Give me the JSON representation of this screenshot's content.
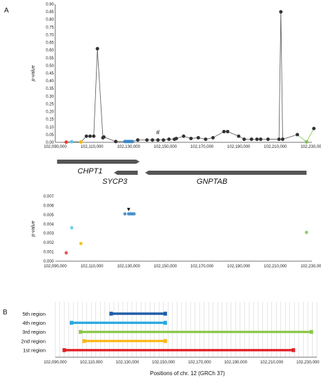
{
  "panels": {
    "a": "A",
    "b": "B"
  },
  "chart_data": [
    {
      "type": "line",
      "ylabel": "p-value",
      "ylim": [
        0,
        0.9
      ],
      "yticks": [
        "0.00",
        "0.05",
        "0.10",
        "0.15",
        "0.20",
        "0.25",
        "0.30",
        "0.35",
        "0.40",
        "0.45",
        "0.50",
        "0.55",
        "0.60",
        "0.65",
        "0.70",
        "0.75",
        "0.80",
        "0.85",
        "0.90"
      ],
      "xlim": [
        102090000,
        102230000
      ],
      "xticks": [
        "102,090,000",
        "102,110,000",
        "102,130,000",
        "102,150,000",
        "102,170,000",
        "102,190,000",
        "102,210,000",
        "102,230,000"
      ],
      "line_color": "#555555",
      "annotation": "#",
      "annotation_x": 102146000,
      "points": [
        {
          "x": 102096000,
          "y": 0.001,
          "c": "#e8392c"
        },
        {
          "x": 102099000,
          "y": 0.004,
          "c": "#56c4e8"
        },
        {
          "x": 102104000,
          "y": 0.002,
          "c": "#f5b800"
        },
        {
          "x": 102107000,
          "y": 0.04,
          "c": "#333333"
        },
        {
          "x": 102109000,
          "y": 0.04,
          "c": "#333333"
        },
        {
          "x": 102111000,
          "y": 0.04,
          "c": "#333333"
        },
        {
          "x": 102113000,
          "y": 0.61,
          "c": "#333333"
        },
        {
          "x": 102116000,
          "y": 0.03,
          "c": "#333333"
        },
        {
          "x": 102116500,
          "y": 0.035,
          "c": "#333333"
        },
        {
          "x": 102123000,
          "y": 0.005,
          "c": "#333333"
        },
        {
          "x": 102128000,
          "y": 0.005,
          "c": "#3a86c8"
        },
        {
          "x": 102129000,
          "y": 0.005,
          "c": "#3a86c8"
        },
        {
          "x": 102130000,
          "y": 0.005,
          "c": "#3a86c8"
        },
        {
          "x": 102131000,
          "y": 0.005,
          "c": "#3a86c8"
        },
        {
          "x": 102132000,
          "y": 0.005,
          "c": "#3a86c8"
        },
        {
          "x": 102135000,
          "y": 0.015,
          "c": "#333333"
        },
        {
          "x": 102140000,
          "y": 0.015,
          "c": "#333333"
        },
        {
          "x": 102143000,
          "y": 0.015,
          "c": "#333333"
        },
        {
          "x": 102146000,
          "y": 0.015,
          "c": "#333333"
        },
        {
          "x": 102149000,
          "y": 0.015,
          "c": "#333333"
        },
        {
          "x": 102152000,
          "y": 0.02,
          "c": "#333333"
        },
        {
          "x": 102155000,
          "y": 0.02,
          "c": "#333333"
        },
        {
          "x": 102156000,
          "y": 0.025,
          "c": "#333333"
        },
        {
          "x": 102160000,
          "y": 0.04,
          "c": "#333333"
        },
        {
          "x": 102164000,
          "y": 0.025,
          "c": "#333333"
        },
        {
          "x": 102168000,
          "y": 0.03,
          "c": "#333333"
        },
        {
          "x": 102172000,
          "y": 0.02,
          "c": "#333333"
        },
        {
          "x": 102176000,
          "y": 0.03,
          "c": "#333333"
        },
        {
          "x": 102182000,
          "y": 0.07,
          "c": "#333333"
        },
        {
          "x": 102184000,
          "y": 0.07,
          "c": "#333333"
        },
        {
          "x": 102190000,
          "y": 0.04,
          "c": "#333333"
        },
        {
          "x": 102193000,
          "y": 0.02,
          "c": "#333333"
        },
        {
          "x": 102197000,
          "y": 0.02,
          "c": "#333333"
        },
        {
          "x": 102200000,
          "y": 0.02,
          "c": "#333333"
        },
        {
          "x": 102202000,
          "y": 0.02,
          "c": "#333333"
        },
        {
          "x": 102206000,
          "y": 0.02,
          "c": "#333333"
        },
        {
          "x": 102212000,
          "y": 0.02,
          "c": "#333333"
        },
        {
          "x": 102213000,
          "y": 0.85,
          "c": "#333333"
        },
        {
          "x": 102214000,
          "y": 0.02,
          "c": "#333333"
        },
        {
          "x": 102222000,
          "y": 0.05,
          "c": "#333333"
        },
        {
          "x": 102227000,
          "y": 0.003,
          "c": "#7dc44e"
        },
        {
          "x": 102231000,
          "y": 0.09,
          "c": "#333333"
        }
      ]
    },
    {
      "type": "scatter",
      "ylabel": "p-value",
      "ylim": [
        0,
        0.007
      ],
      "yticks": [
        "0.000",
        "0.001",
        "0.002",
        "0.003",
        "0.004",
        "0.005",
        "0.006",
        "0.007"
      ],
      "xlim": [
        102090000,
        102230000
      ],
      "xticks": [
        "102,090,000",
        "102,110,000",
        "102,130,000",
        "102,150,000",
        "102,170,000",
        "102,190,000",
        "102,210,000",
        "102,230,000"
      ],
      "marker": "▼",
      "marker_x": 102130000,
      "points": [
        {
          "x": 102096000,
          "y": 0.0009,
          "c": "#e8392c"
        },
        {
          "x": 102099000,
          "y": 0.0036,
          "c": "#56c4e8"
        },
        {
          "x": 102104000,
          "y": 0.0019,
          "c": "#f5b800"
        },
        {
          "x": 102128000,
          "y": 0.0051,
          "c": "#3a86c8"
        },
        {
          "x": 102130000,
          "y": 0.0051,
          "c": "#3a86c8"
        },
        {
          "x": 102131000,
          "y": 0.0051,
          "c": "#3a86c8"
        },
        {
          "x": 102132000,
          "y": 0.0051,
          "c": "#3a86c8"
        },
        {
          "x": 102133000,
          "y": 0.0051,
          "c": "#3a86c8"
        },
        {
          "x": 102227000,
          "y": 0.0031,
          "c": "#7dc44e"
        }
      ]
    },
    {
      "type": "bar",
      "orientation": "horizontal-range",
      "xlabel": "Positions of chr. 12 (GRCh 37)",
      "xlim": [
        102090000,
        102235000
      ],
      "xticks": [
        "102,090,000",
        "102,110,000",
        "102,130,000",
        "102,150,000",
        "102,170,000",
        "102,190,000",
        "102,210,000",
        "102,230,000"
      ],
      "grid": true,
      "regions": [
        {
          "label": "5th region",
          "start": 102121000,
          "end": 102151000,
          "color": "#1f5ea8"
        },
        {
          "label": "4th region",
          "start": 102099000,
          "end": 102151000,
          "color": "#29a8e0"
        },
        {
          "label": "3rd region",
          "start": 102104000,
          "end": 102232000,
          "color": "#8cc84b"
        },
        {
          "label": "2nd region",
          "start": 102106000,
          "end": 102151000,
          "color": "#fbb817"
        },
        {
          "label": "1st region",
          "start": 102095000,
          "end": 102222000,
          "color": "#e41e26"
        }
      ]
    }
  ],
  "genes": [
    {
      "name": "CHPT1",
      "start": 102091000,
      "end": 102136000,
      "row": 0,
      "dir": "right"
    },
    {
      "name": "SYCP3",
      "start": 102122000,
      "end": 102135000,
      "row": 1,
      "dir": "left"
    },
    {
      "name": "GNPTAB",
      "start": 102139000,
      "end": 102227000,
      "row": 1,
      "dir": "left"
    }
  ]
}
